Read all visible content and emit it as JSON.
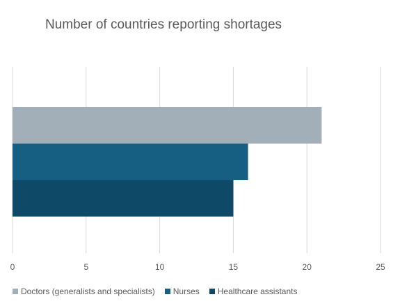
{
  "chart_data": {
    "type": "bar",
    "orientation": "horizontal",
    "title": "Number of countries reporting shortages",
    "xlabel": "",
    "ylabel": "",
    "xlim": [
      0,
      25
    ],
    "xticks": [
      "0",
      "5",
      "10",
      "15",
      "20",
      "25"
    ],
    "grid": true,
    "legend_position": "bottom-left",
    "series": [
      {
        "name": "Doctors (generalists and specialists)",
        "values": [
          21
        ],
        "color": "#a3afb8"
      },
      {
        "name": "Nurses",
        "values": [
          16
        ],
        "color": "#165f82"
      },
      {
        "name": "Healthcare assistants",
        "values": [
          15
        ],
        "color": "#0e4a67"
      }
    ]
  }
}
